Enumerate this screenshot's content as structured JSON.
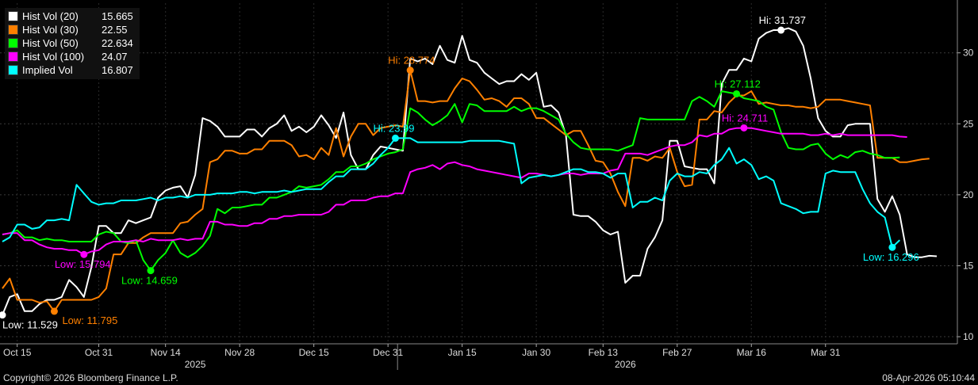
{
  "chart_data": {
    "type": "line",
    "legend_position": "top-left",
    "ylim": [
      9.5,
      33.5
    ],
    "y_ticks": [
      10,
      15,
      20,
      25,
      30
    ],
    "x_tick_labels": [
      {
        "label": "Oct 15",
        "i": 2
      },
      {
        "label": "Oct 31",
        "i": 13
      },
      {
        "label": "Nov 14",
        "i": 22
      },
      {
        "label": "Nov 28",
        "i": 32
      },
      {
        "label": "Dec 15",
        "i": 42
      },
      {
        "label": "Dec 31",
        "i": 52
      },
      {
        "label": "Jan 15",
        "i": 62
      },
      {
        "label": "Jan 30",
        "i": 72
      },
      {
        "label": "Feb 13",
        "i": 81
      },
      {
        "label": "Feb 27",
        "i": 91
      },
      {
        "label": "Mar 16",
        "i": 101
      },
      {
        "label": "Mar 31",
        "i": 111
      }
    ],
    "year_labels": [
      {
        "label": "2025",
        "i": 26
      },
      {
        "label": "2026",
        "i": 84
      }
    ],
    "series": [
      {
        "name": "Hist Vol (20)",
        "value_label": "15.665",
        "color": "#ffffff",
        "values": [
          11.529,
          12.8,
          13,
          11.8,
          11.8,
          12.3,
          12.6,
          12.6,
          12.8,
          14,
          13.5,
          12.8,
          14.9,
          17.8,
          17.8,
          17.3,
          17.3,
          18.2,
          18,
          18.2,
          18.4,
          19.8,
          20.3,
          20.5,
          20.6,
          19.8,
          21.4,
          25.4,
          25.2,
          24.8,
          24.1,
          24.1,
          24.1,
          24.6,
          24.6,
          24.1,
          24.7,
          25,
          25.6,
          24.5,
          24.8,
          24.4,
          24.8,
          25.6,
          24.9,
          24,
          25.8,
          22.8,
          21.8,
          21.8,
          22.8,
          23.4,
          23.3,
          23.2,
          23.1,
          29.6,
          29.4,
          29.6,
          29.2,
          30.5,
          29.5,
          29.3,
          31.2,
          29.5,
          29.3,
          28.6,
          28.2,
          27.8,
          28,
          28,
          28.5,
          28.1,
          28.6,
          26.2,
          26.3,
          25.8,
          24.2,
          18.6,
          18.5,
          18.5,
          18.1,
          17.5,
          17.2,
          17.4,
          13.8,
          14.3,
          14.3,
          16.2,
          17,
          18.2,
          23.8,
          23.8,
          22,
          21.9,
          21.8,
          21.8,
          20.8,
          27.8,
          28.8,
          28.8,
          29.6,
          29.4,
          31,
          31.4,
          31.6,
          31.6,
          31.737,
          31.5,
          30.5,
          28.2,
          25.4,
          24.5,
          24.1,
          24.1,
          24.9,
          25,
          25,
          25,
          19.7,
          18.8,
          19.9,
          18.6,
          15.8,
          15.6,
          15.6,
          15.7,
          15.665
        ]
      },
      {
        "name": "Hist Vol (30)",
        "value_label": "22.55",
        "color": "#ff8000",
        "values": [
          13.4,
          14.1,
          12.6,
          12.6,
          12.6,
          12.4,
          12.5,
          11.795,
          12.6,
          12.6,
          12.6,
          12.6,
          12.6,
          12.8,
          13.4,
          15.8,
          15.8,
          16.6,
          16.6,
          17,
          17.3,
          17.3,
          17.3,
          17.3,
          18,
          18.1,
          18.6,
          19,
          22.3,
          22.5,
          23.1,
          23.1,
          22.9,
          22.9,
          23.2,
          23.2,
          23.8,
          23.8,
          23.8,
          23.5,
          22.7,
          22.8,
          22.5,
          23.3,
          22.8,
          24.7,
          22.7,
          24.1,
          25,
          25,
          24.2,
          24.7,
          24.8,
          24.9,
          24.8,
          28.774,
          26.6,
          26.6,
          26.5,
          26.6,
          26.6,
          27.5,
          28.2,
          28,
          27.4,
          26.7,
          26.8,
          26.6,
          26.2,
          26.8,
          26.8,
          26.4,
          25.4,
          25.4,
          25,
          24.6,
          24.2,
          24.5,
          24.5,
          23.5,
          22.4,
          22.3,
          21.5,
          20.2,
          19.2,
          22.6,
          22.6,
          22.4,
          22.7,
          22.6,
          23.3,
          21.6,
          20.6,
          20.7,
          25.3,
          25.3,
          25.9,
          25.8,
          26.5,
          27,
          27,
          27.3,
          26.4,
          26.5,
          26.4,
          26.3,
          26.3,
          26.2,
          26.2,
          26.1,
          26.2,
          26.7,
          26.7,
          26.7,
          26.6,
          26.5,
          26.4,
          26.3,
          22.6,
          22.6,
          22.6,
          22.3,
          22.3,
          22.4,
          22.5,
          22.55
        ]
      },
      {
        "name": "Hist Vol (50)",
        "value_label": "22.634",
        "color": "#00ff00",
        "values": [
          17.2,
          17.3,
          17.5,
          17,
          17,
          16.8,
          16.9,
          16.8,
          16.8,
          16.7,
          16.7,
          16.7,
          16.7,
          17.2,
          17.4,
          17.3,
          16.7,
          16.6,
          16.8,
          15.4,
          14.659,
          15.4,
          15.9,
          16.8,
          15.9,
          15.6,
          15.9,
          16.4,
          17.1,
          19,
          18.7,
          19.1,
          19.1,
          19.2,
          19.3,
          19.3,
          19.8,
          19.8,
          20,
          20.2,
          20.6,
          20.5,
          20.6,
          20.7,
          21.1,
          21.6,
          21.6,
          22,
          22,
          22.2,
          22.5,
          22.7,
          22.9,
          23,
          23.2,
          26.1,
          25.8,
          25.3,
          24.9,
          25.2,
          25.6,
          26.4,
          25.1,
          26.4,
          26.3,
          25.9,
          25.9,
          25.9,
          25.9,
          26.2,
          25.9,
          26.1,
          26.1,
          25.9,
          25.6,
          25.3,
          24.3,
          23.7,
          23.3,
          23.2,
          23.2,
          23.2,
          23.2,
          23.1,
          23.3,
          23.5,
          25.4,
          25.3,
          25.3,
          25.3,
          25.3,
          25.3,
          25.3,
          26.6,
          26.9,
          26.6,
          26.2,
          27.3,
          27.2,
          27.112,
          26.8,
          26.7,
          26.6,
          26.2,
          26,
          24.4,
          23.3,
          23.2,
          23.2,
          23.5,
          23.6,
          22.9,
          22.5,
          22.8,
          22.6,
          23,
          23.1,
          22.9,
          22.8,
          22.6,
          22.6,
          22.634
        ]
      },
      {
        "name": "Hist Vol (100)",
        "value_label": "24.07",
        "color": "#ff00ff",
        "values": [
          17.2,
          17.3,
          17.3,
          16.8,
          16.8,
          16.5,
          16.3,
          16.2,
          16.2,
          16.1,
          16.1,
          15.794,
          16,
          16.1,
          16.5,
          16.7,
          16.7,
          16.7,
          16.8,
          16.7,
          16.9,
          16.8,
          16.8,
          16.8,
          16.9,
          16.8,
          16.9,
          16.9,
          18.1,
          18.1,
          17.9,
          17.9,
          17.8,
          17.8,
          18,
          18,
          18.3,
          18.3,
          18.5,
          18.5,
          18.6,
          18.6,
          18.6,
          18.6,
          18.8,
          19.3,
          19.3,
          19.6,
          19.6,
          19.6,
          19.8,
          19.9,
          19.9,
          20.1,
          20.1,
          21.6,
          21.8,
          21.9,
          22.1,
          21.8,
          22.2,
          22.3,
          22.1,
          22,
          21.8,
          21.7,
          21.6,
          21.5,
          21.4,
          21.3,
          21.2,
          21.5,
          21.5,
          21.4,
          21.3,
          21.4,
          21.5,
          21.5,
          21.4,
          21.5,
          21.5,
          21.5,
          21.7,
          21.8,
          22.9,
          22.9,
          22.9,
          22.8,
          23,
          23.2,
          23.4,
          23.5,
          23.5,
          23.7,
          24.2,
          24.1,
          24.3,
          24.3,
          24.6,
          24.7,
          24.711,
          24.7,
          24.6,
          24.5,
          24.4,
          24.3,
          24.3,
          24.3,
          24.3,
          24.2,
          24.2,
          24.3,
          24.2,
          24.3,
          24.2,
          24.2,
          24.2,
          24.2,
          24.2,
          24.2,
          24.2,
          24.1,
          24.07
        ]
      },
      {
        "name": "Implied Vol",
        "value_label": "16.807",
        "color": "#00ffff",
        "values": [
          16.7,
          17,
          17.9,
          17.9,
          17.6,
          17.7,
          18.2,
          18.2,
          18.3,
          18.2,
          20.7,
          20.1,
          19.5,
          19.3,
          19.4,
          19.4,
          19.6,
          19.6,
          19.6,
          19.7,
          19.8,
          19.6,
          19.8,
          19.8,
          19.9,
          19.8,
          20,
          20,
          20,
          20.1,
          20.1,
          20.1,
          20.2,
          20.2,
          20.1,
          20.2,
          20.2,
          20.2,
          20.3,
          20.2,
          20.3,
          20.4,
          20.4,
          20.4,
          20.9,
          21.3,
          21.3,
          21.8,
          21.8,
          21.8,
          22.2,
          22.8,
          23.3,
          23.99,
          23.99,
          23.99,
          23.7,
          23.7,
          23.7,
          23.7,
          23.7,
          23.7,
          23.7,
          23.8,
          23.8,
          23.8,
          23.8,
          23.8,
          23.7,
          23.6,
          20.8,
          21.2,
          21.3,
          21.4,
          21.3,
          21.4,
          21.6,
          21.8,
          21.8,
          21.6,
          21.6,
          21.5,
          21.2,
          21.5,
          21.5,
          19.1,
          19.5,
          19.5,
          19.8,
          19.6,
          21,
          21.5,
          21.3,
          21.3,
          21.6,
          21.5,
          22.1,
          22.5,
          23.3,
          22.2,
          22.5,
          22.1,
          21.1,
          21.3,
          21,
          19.4,
          19.2,
          19,
          18.7,
          18.8,
          18.8,
          21.5,
          21.7,
          21.6,
          21.6,
          21.6,
          20.4,
          19.4,
          18.8,
          18.4,
          16.296,
          16.807
        ]
      }
    ],
    "annotations": [
      {
        "series": 0,
        "kind": "low",
        "i": 0,
        "text": "Low: 11.529",
        "anchor": "below-right"
      },
      {
        "series": 1,
        "kind": "low",
        "i": 7,
        "text": "Low: 11.795",
        "anchor": "right"
      },
      {
        "series": 2,
        "kind": "low",
        "i": 20,
        "text": "Low: 14.659",
        "anchor": "below-left"
      },
      {
        "series": 3,
        "kind": "low",
        "i": 11,
        "text": "Low: 15.794",
        "anchor": "below-left"
      },
      {
        "series": 4,
        "kind": "low",
        "i": 120,
        "text": "Low: 16.296",
        "anchor": "below-left"
      },
      {
        "series": 0,
        "kind": "high",
        "i": 105,
        "text": "Hi: 31.737",
        "anchor": "above-left"
      },
      {
        "series": 1,
        "kind": "high",
        "i": 55,
        "text": "Hi: 28.774",
        "anchor": "above-left"
      },
      {
        "series": 2,
        "kind": "high",
        "i": 99,
        "text": "Hi: 27.112",
        "anchor": "above-left"
      },
      {
        "series": 3,
        "kind": "high",
        "i": 100,
        "text": "Hi: 24.711",
        "anchor": "above-left"
      },
      {
        "series": 4,
        "kind": "high",
        "i": 53,
        "text": "Hi: 23.99",
        "anchor": "above-left"
      }
    ]
  },
  "footer": {
    "copyright": "Copyright© 2026 Bloomberg Finance L.P.",
    "timestamp": "08-Apr-2026 05:10:44"
  }
}
